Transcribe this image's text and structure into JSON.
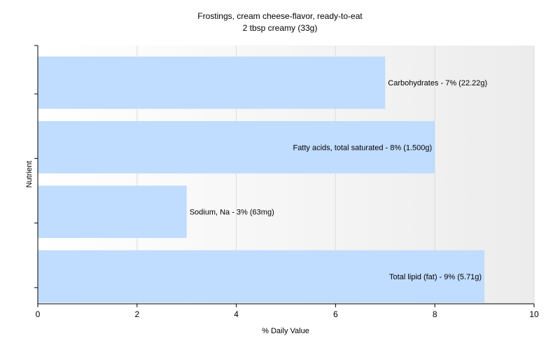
{
  "chart_data": {
    "type": "bar",
    "orientation": "horizontal",
    "title": "Frostings, cream cheese-flavor, ready-to-eat",
    "subtitle": "2 tbsp creamy (33g)",
    "xlabel": "% Daily Value",
    "ylabel": "Nutrient",
    "xlim": [
      0,
      10
    ],
    "xticks": [
      0,
      2,
      4,
      6,
      8,
      10
    ],
    "grid": true,
    "bar_color": "#c0dcff",
    "categories": [
      "Carbohydrates",
      "Fatty acids, total saturated",
      "Sodium, Na",
      "Total lipid (fat)"
    ],
    "values": [
      7,
      8,
      3,
      9
    ],
    "data_labels": [
      "Carbohydrates - 7% (22.22g)",
      "Fatty acids, total saturated - 8% (1.500g)",
      "Sodium, Na - 3% (63mg)",
      "Total lipid (fat) - 9% (5.71g)"
    ]
  }
}
